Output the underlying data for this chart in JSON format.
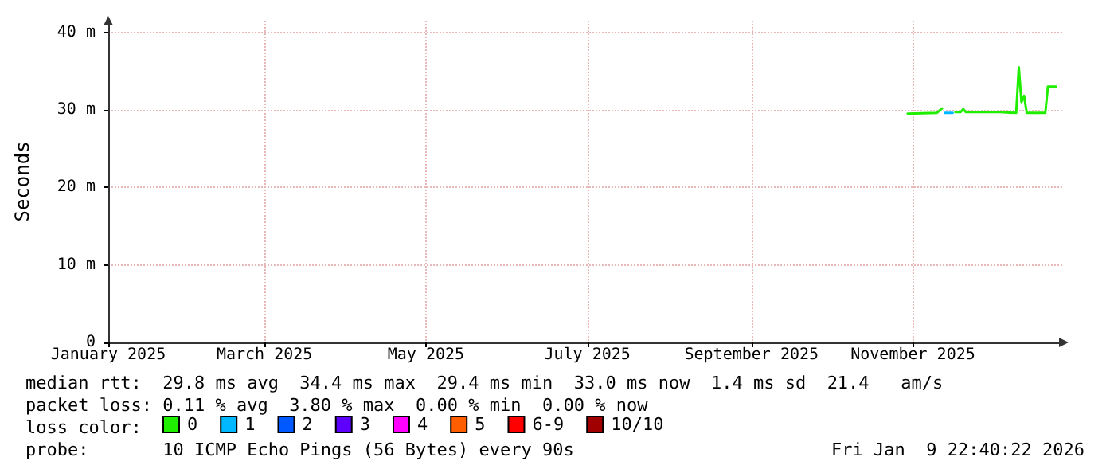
{
  "chart_data": {
    "type": "line",
    "ylabel": "Seconds",
    "legend_title": "loss color:",
    "xlim": [
      "2025-01-01",
      "2025-12-28"
    ],
    "xticks": [
      {
        "value": "2025-01-01",
        "label": "January 2025"
      },
      {
        "value": "2025-03-01",
        "label": "March 2025"
      },
      {
        "value": "2025-05-01",
        "label": "May 2025"
      },
      {
        "value": "2025-07-01",
        "label": "July 2025"
      },
      {
        "value": "2025-09-01",
        "label": "September 2025"
      },
      {
        "value": "2025-11-01",
        "label": "November 2025"
      }
    ],
    "ylim": [
      0,
      41.5
    ],
    "yticks": [
      0,
      {
        "value": 10,
        "label": "10 m"
      },
      {
        "value": 20,
        "label": "20 m"
      },
      {
        "value": 30,
        "label": "30 m"
      },
      {
        "value": 40,
        "label": "40 m"
      }
    ],
    "grid": true,
    "legend": "bottom left",
    "marker": "none",
    "line_style": "solid",
    "series": [
      {
        "name": "0",
        "color": "#20ee00",
        "x": [
          "2025-10-30",
          "2025-11-10",
          "2025-11-12",
          "2025-11-14",
          "2025-11-17",
          "2025-11-19",
          "2025-11-20",
          "2025-11-21",
          "2025-12-04",
          "2025-12-10",
          "2025-12-11",
          "2025-12-12",
          "2025-12-13",
          "2025-12-14",
          "2025-12-21",
          "2025-12-22",
          "2025-12-25"
        ],
        "values": [
          29.5,
          29.6,
          30.2,
          null,
          29.7,
          29.7,
          30.1,
          29.7,
          29.7,
          29.6,
          35.5,
          31,
          31.8,
          29.6,
          29.6,
          33,
          33
        ]
      },
      {
        "name": "1",
        "color": "#00b8ff",
        "x": [
          "2025-11-13",
          "2025-11-16"
        ],
        "values": [
          29.6,
          29.6
        ]
      },
      {
        "name": "2",
        "color": "#0059ff"
      },
      {
        "name": "3",
        "color": "#5e00ff"
      },
      {
        "name": "4",
        "color": "#ff00ff"
      },
      {
        "name": "5",
        "color": "#ff5e00"
      },
      {
        "name": "6-9",
        "color": "#ff0000"
      },
      {
        "name": "10/10",
        "color": "#a10000"
      }
    ],
    "annotations": [
      "median rtt:  29.8 ms avg  34.4 ms max  29.4 ms min  33.0 ms now  1.4 ms sd  21.4   am/s",
      "packet loss: 0.11 % avg  3.80 % max  0.00 % min  0.00 % now",
      "probe:       10 ICMP Echo Pings (56 Bytes) every 90s",
      "Fri Jan  9 22:40:22 2026"
    ]
  }
}
